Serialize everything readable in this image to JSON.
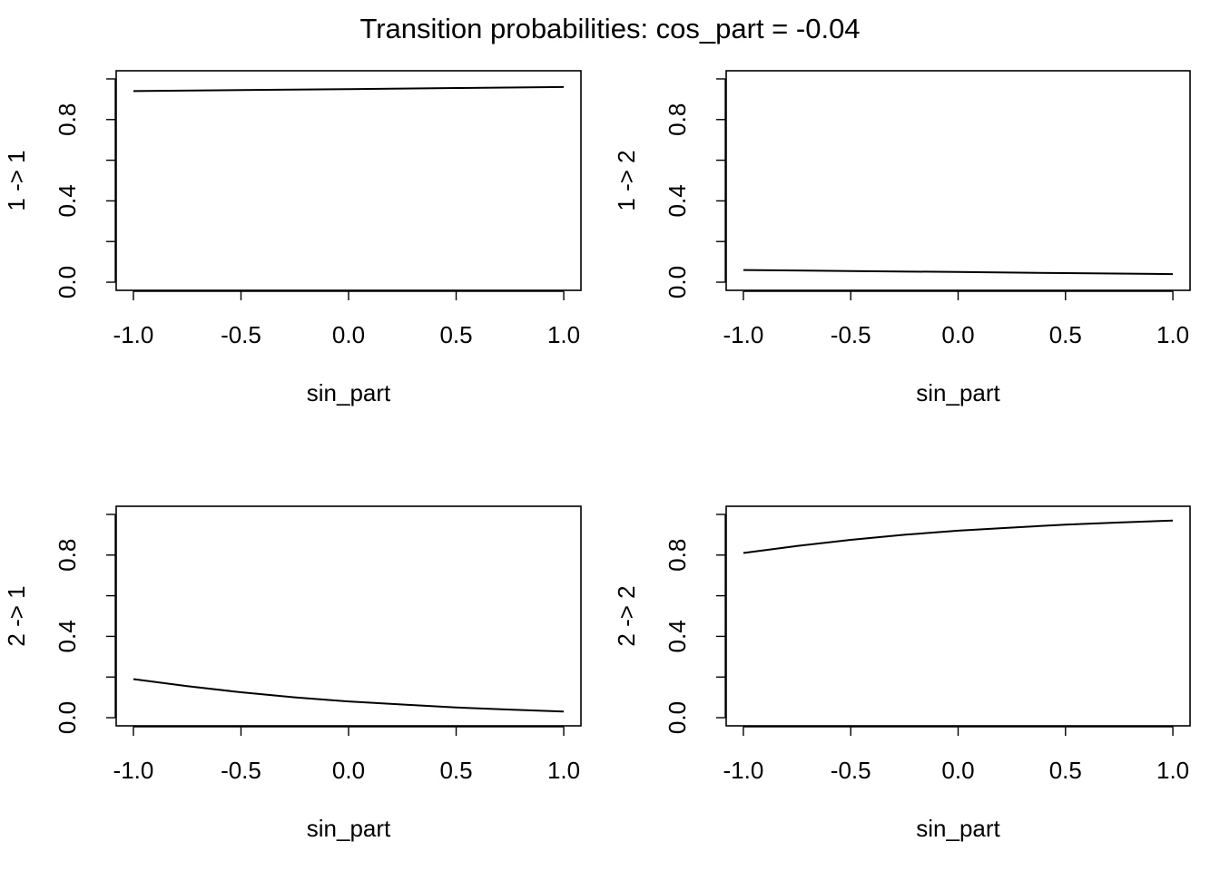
{
  "title": "Transition probabilities: cos_part = -0.04",
  "chart_data": [
    {
      "type": "line",
      "xlabel": "sin_part",
      "ylabel": "1 -> 1",
      "xlim": [
        -1.0,
        1.0
      ],
      "ylim": [
        0.0,
        1.0
      ],
      "xticks": [
        "-1.0",
        "-0.5",
        "0.0",
        "0.5",
        "1.0"
      ],
      "yticks": [
        "0.0",
        "0.4",
        "0.8"
      ],
      "grid": false,
      "x": [
        -1.0,
        -0.5,
        0.0,
        0.5,
        1.0
      ],
      "values": [
        0.94,
        0.945,
        0.95,
        0.955,
        0.96
      ]
    },
    {
      "type": "line",
      "xlabel": "sin_part",
      "ylabel": "1 -> 2",
      "xlim": [
        -1.0,
        1.0
      ],
      "ylim": [
        0.0,
        1.0
      ],
      "xticks": [
        "-1.0",
        "-0.5",
        "0.0",
        "0.5",
        "1.0"
      ],
      "yticks": [
        "0.0",
        "0.4",
        "0.8"
      ],
      "grid": false,
      "x": [
        -1.0,
        -0.5,
        0.0,
        0.5,
        1.0
      ],
      "values": [
        0.06,
        0.055,
        0.05,
        0.045,
        0.04
      ]
    },
    {
      "type": "line",
      "xlabel": "sin_part",
      "ylabel": "2 -> 1",
      "xlim": [
        -1.0,
        1.0
      ],
      "ylim": [
        0.0,
        1.0
      ],
      "xticks": [
        "-1.0",
        "-0.5",
        "0.0",
        "0.5",
        "1.0"
      ],
      "yticks": [
        "0.0",
        "0.4",
        "0.8"
      ],
      "grid": false,
      "x": [
        -1.0,
        -0.75,
        -0.5,
        -0.25,
        0.0,
        0.25,
        0.5,
        0.75,
        1.0
      ],
      "values": [
        0.19,
        0.155,
        0.125,
        0.1,
        0.08,
        0.065,
        0.05,
        0.04,
        0.03
      ]
    },
    {
      "type": "line",
      "xlabel": "sin_part",
      "ylabel": "2 -> 2",
      "xlim": [
        -1.0,
        1.0
      ],
      "ylim": [
        0.0,
        1.0
      ],
      "xticks": [
        "-1.0",
        "-0.5",
        "0.0",
        "0.5",
        "1.0"
      ],
      "yticks": [
        "0.0",
        "0.4",
        "0.8"
      ],
      "grid": false,
      "x": [
        -1.0,
        -0.75,
        -0.5,
        -0.25,
        0.0,
        0.25,
        0.5,
        0.75,
        1.0
      ],
      "values": [
        0.81,
        0.845,
        0.875,
        0.9,
        0.92,
        0.935,
        0.95,
        0.96,
        0.97
      ]
    }
  ]
}
